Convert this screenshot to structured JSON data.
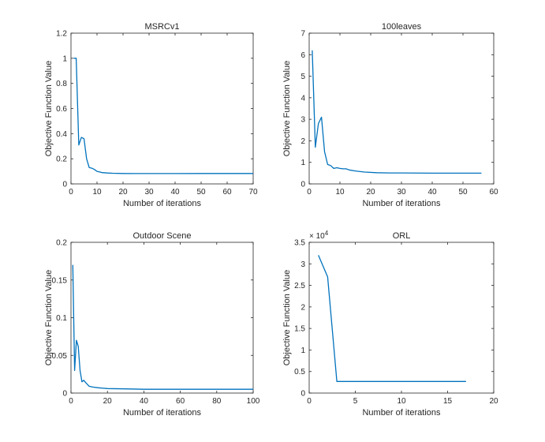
{
  "colors": {
    "series": "#0072BD",
    "axis": "#262626",
    "background": "#ffffff"
  },
  "chart_data": [
    {
      "type": "line",
      "title": "MSRCv1",
      "xlabel": "Number of iterations",
      "ylabel": "Objective Function Value",
      "xlim": [
        0,
        70
      ],
      "ylim": [
        0,
        1.2
      ],
      "xticks": [
        0,
        10,
        20,
        30,
        40,
        50,
        60,
        70
      ],
      "xtick_labels": [
        "0",
        "10",
        "20",
        "30",
        "40",
        "50",
        "60",
        "70"
      ],
      "yticks": [
        0,
        0.2,
        0.4,
        0.6,
        0.8,
        1,
        1.2
      ],
      "ytick_labels": [
        "0",
        "0.2",
        "0.4",
        "0.6",
        "0.8",
        "1",
        "1.2"
      ],
      "exponent": "",
      "series": [
        {
          "name": "objective",
          "x": [
            1,
            2,
            3,
            4,
            5,
            6,
            7,
            8,
            9,
            10,
            11,
            12,
            14,
            16,
            20,
            25,
            30,
            40,
            50,
            60,
            70
          ],
          "y": [
            1.0,
            1.0,
            0.31,
            0.37,
            0.36,
            0.2,
            0.13,
            0.125,
            0.115,
            0.1,
            0.095,
            0.09,
            0.087,
            0.085,
            0.083,
            0.082,
            0.082,
            0.082,
            0.083,
            0.083,
            0.083
          ]
        }
      ]
    },
    {
      "type": "line",
      "title": "100leaves",
      "xlabel": "Number of iterations",
      "ylabel": "Objective Function Value",
      "xlim": [
        0,
        60
      ],
      "ylim": [
        0,
        7
      ],
      "xticks": [
        0,
        10,
        20,
        30,
        40,
        50,
        60
      ],
      "xtick_labels": [
        "0",
        "10",
        "20",
        "30",
        "40",
        "50",
        "60"
      ],
      "yticks": [
        0,
        1,
        2,
        3,
        4,
        5,
        6,
        7
      ],
      "ytick_labels": [
        "0",
        "1",
        "2",
        "3",
        "4",
        "5",
        "6",
        "7"
      ],
      "exponent": "",
      "series": [
        {
          "name": "objective",
          "x": [
            1,
            2,
            3,
            4,
            5,
            6,
            7,
            8,
            9,
            10,
            11,
            12,
            13,
            15,
            18,
            22,
            26,
            30,
            40,
            50,
            56
          ],
          "y": [
            6.2,
            1.7,
            2.8,
            3.1,
            1.5,
            0.9,
            0.85,
            0.72,
            0.75,
            0.72,
            0.7,
            0.7,
            0.65,
            0.6,
            0.55,
            0.52,
            0.51,
            0.51,
            0.5,
            0.5,
            0.5
          ],
          "y_scale_note": ""
        }
      ]
    },
    {
      "type": "line",
      "title": "Outdoor Scene",
      "xlabel": "Number of iterations",
      "ylabel": "Objective Function Value",
      "xlim": [
        0,
        100
      ],
      "ylim": [
        0,
        0.2
      ],
      "xticks": [
        0,
        20,
        40,
        60,
        80,
        100
      ],
      "xtick_labels": [
        "0",
        "20",
        "40",
        "60",
        "80",
        "100"
      ],
      "yticks": [
        0,
        0.05,
        0.1,
        0.15,
        0.2
      ],
      "ytick_labels": [
        "0",
        "0.05",
        "0.1",
        "0.15",
        "0.2"
      ],
      "exponent": "",
      "series": [
        {
          "name": "objective",
          "x": [
            1,
            2,
            3,
            4,
            5,
            6,
            7,
            8,
            10,
            12,
            15,
            20,
            30,
            40,
            60,
            80,
            100
          ],
          "y": [
            0.17,
            0.03,
            0.07,
            0.062,
            0.03,
            0.015,
            0.017,
            0.014,
            0.009,
            0.008,
            0.007,
            0.006,
            0.0055,
            0.005,
            0.005,
            0.005,
            0.005
          ]
        }
      ]
    },
    {
      "type": "line",
      "title": "ORL",
      "xlabel": "Number of iterations",
      "ylabel": "Objective Function Value",
      "xlim": [
        0,
        20
      ],
      "ylim": [
        0,
        35000
      ],
      "xticks": [
        0,
        5,
        10,
        15,
        20
      ],
      "xtick_labels": [
        "0",
        "5",
        "10",
        "15",
        "20"
      ],
      "yticks": [
        0,
        5000,
        10000,
        15000,
        20000,
        25000,
        30000,
        35000
      ],
      "ytick_labels": [
        "0",
        "0.5",
        "1",
        "1.5",
        "2",
        "2.5",
        "3",
        "3.5"
      ],
      "exponent": "4",
      "exponent_base": "× 10",
      "series": [
        {
          "name": "objective",
          "x": [
            1,
            2,
            3,
            4,
            5,
            6,
            7,
            8,
            9,
            10,
            11,
            12,
            13,
            14,
            15,
            16,
            17
          ],
          "y": [
            32000,
            27000,
            2700,
            2700,
            2700,
            2700,
            2700,
            2700,
            2700,
            2700,
            2700,
            2700,
            2700,
            2700,
            2700,
            2700,
            2700
          ]
        }
      ]
    }
  ]
}
